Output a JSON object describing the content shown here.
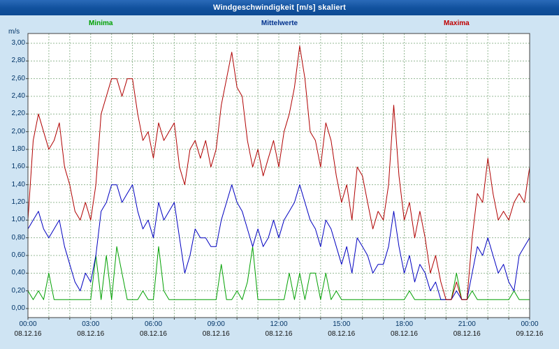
{
  "title_bar": {
    "title": "Windgeschwindigkeit [m/s] skaliert"
  },
  "legend": {
    "minima": "Minima",
    "mittelwerte": "Mittelwerte",
    "maxima": "Maxima"
  },
  "axis": {
    "unit_label": "m/s"
  },
  "colors": {
    "background": "#cfe4f3",
    "title_bar": "#11519d",
    "plot_background": "#ffffff",
    "plot_border": "#404040",
    "grid": "#94b894",
    "axis_text": "#003366",
    "date_text": "#111111",
    "minima": "#00a000",
    "mittelwerte": "#0000c0",
    "maxima": "#b00000"
  },
  "chart_data": {
    "type": "line",
    "title": "Windgeschwindigkeit [m/s] skaliert",
    "ylabel": "m/s",
    "ylim": [
      0,
      3.0
    ],
    "y_tick_step": 0.2,
    "y_tick_labels": [
      "3,00",
      "2,80",
      "2,60",
      "2,40",
      "2,20",
      "2,00",
      "1,80",
      "1,60",
      "1,40",
      "1,20",
      "1,00",
      "0,80",
      "0,60",
      "0,40",
      "0,20",
      "0,00"
    ],
    "x_range_hours": [
      0,
      24
    ],
    "x_minor_grid_hours": 1,
    "x_tick_times": [
      "00:00",
      "03:00",
      "06:00",
      "09:00",
      "12:00",
      "15:00",
      "18:00",
      "21:00",
      "00:00"
    ],
    "x_tick_dates": [
      "08.12.16",
      "08.12.16",
      "08.12.16",
      "08.12.16",
      "08.12.16",
      "08.12.16",
      "08.12.16",
      "08.12.16",
      "09.12.16"
    ],
    "sample_interval_minutes": 15,
    "grid": true,
    "legend_position": "top",
    "series": [
      {
        "name": "Minima",
        "color": "#00a000",
        "values": [
          0.2,
          0.1,
          0.2,
          0.1,
          0.4,
          0.1,
          0.1,
          0.1,
          0.1,
          0.1,
          0.1,
          0.1,
          0.1,
          0.6,
          0.1,
          0.6,
          0.1,
          0.7,
          0.4,
          0.1,
          0.1,
          0.1,
          0.2,
          0.1,
          0.1,
          0.7,
          0.2,
          0.1,
          0.1,
          0.1,
          0.1,
          0.1,
          0.1,
          0.1,
          0.1,
          0.1,
          0.1,
          0.5,
          0.1,
          0.1,
          0.2,
          0.1,
          0.3,
          0.7,
          0.1,
          0.1,
          0.1,
          0.1,
          0.1,
          0.1,
          0.4,
          0.1,
          0.4,
          0.1,
          0.4,
          0.4,
          0.1,
          0.4,
          0.1,
          0.2,
          0.1,
          0.1,
          0.1,
          0.1,
          0.1,
          0.1,
          0.1,
          0.1,
          0.1,
          0.1,
          0.1,
          0.1,
          0.1,
          0.2,
          0.1,
          0.1,
          0.1,
          0.1,
          0.1,
          0.1,
          0.1,
          0.1,
          0.4,
          0.1,
          0.1,
          0.2,
          0.1,
          0.1,
          0.1,
          0.1,
          0.1,
          0.1,
          0.1,
          0.2,
          0.1,
          0.1,
          0.1
        ]
      },
      {
        "name": "Mittelwerte",
        "color": "#0000c0",
        "values": [
          0.9,
          1.0,
          1.1,
          0.9,
          0.8,
          0.9,
          1.0,
          0.7,
          0.5,
          0.3,
          0.2,
          0.4,
          0.3,
          0.6,
          1.1,
          1.2,
          1.4,
          1.4,
          1.2,
          1.3,
          1.4,
          1.1,
          0.9,
          1.0,
          0.8,
          1.2,
          1.0,
          1.1,
          1.2,
          0.8,
          0.4,
          0.6,
          0.9,
          0.8,
          0.8,
          0.7,
          0.7,
          1.0,
          1.2,
          1.4,
          1.2,
          1.1,
          0.9,
          0.7,
          0.9,
          0.7,
          0.8,
          1.0,
          0.8,
          1.0,
          1.1,
          1.2,
          1.4,
          1.2,
          1.0,
          0.9,
          0.7,
          1.0,
          0.9,
          0.7,
          0.5,
          0.7,
          0.4,
          0.8,
          0.7,
          0.6,
          0.4,
          0.5,
          0.5,
          0.7,
          1.1,
          0.7,
          0.4,
          0.6,
          0.3,
          0.5,
          0.4,
          0.2,
          0.3,
          0.1,
          0.1,
          0.1,
          0.2,
          0.1,
          0.1,
          0.4,
          0.7,
          0.6,
          0.8,
          0.6,
          0.4,
          0.5,
          0.3,
          0.2,
          0.6,
          0.7,
          0.8
        ]
      },
      {
        "name": "Maxima",
        "color": "#b00000",
        "values": [
          1.0,
          1.9,
          2.2,
          2.0,
          1.8,
          1.9,
          2.1,
          1.6,
          1.4,
          1.1,
          1.0,
          1.2,
          1.0,
          1.4,
          2.2,
          2.4,
          2.6,
          2.6,
          2.4,
          2.6,
          2.6,
          2.2,
          1.9,
          2.0,
          1.7,
          2.1,
          1.9,
          2.0,
          2.1,
          1.6,
          1.4,
          1.8,
          1.9,
          1.7,
          1.9,
          1.6,
          1.8,
          2.3,
          2.6,
          2.9,
          2.5,
          2.4,
          1.9,
          1.6,
          1.8,
          1.5,
          1.7,
          1.9,
          1.6,
          2.0,
          2.2,
          2.5,
          2.97,
          2.6,
          2.0,
          1.9,
          1.6,
          2.1,
          1.9,
          1.5,
          1.2,
          1.4,
          1.0,
          1.6,
          1.5,
          1.2,
          0.9,
          1.1,
          1.0,
          1.4,
          2.3,
          1.5,
          1.0,
          1.2,
          0.8,
          1.1,
          0.8,
          0.4,
          0.6,
          0.3,
          0.1,
          0.1,
          0.3,
          0.1,
          0.1,
          0.8,
          1.3,
          1.2,
          1.7,
          1.3,
          1.0,
          1.1,
          1.0,
          1.2,
          1.3,
          1.2,
          1.6
        ]
      }
    ]
  }
}
